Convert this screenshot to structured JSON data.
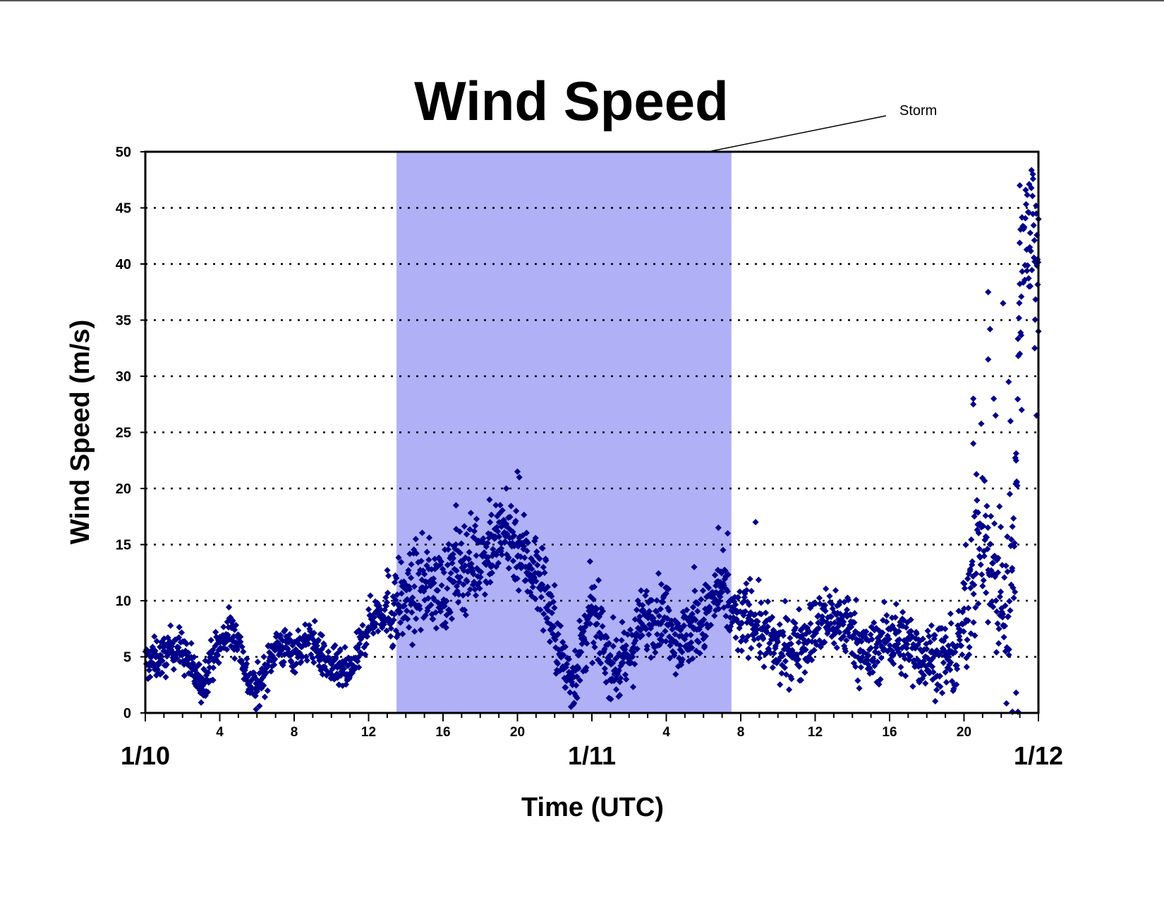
{
  "chart_data": {
    "type": "scatter",
    "title": "Wind Speed",
    "xlabel": "Time (UTC)",
    "ylabel": "Wind Speed (m/s)",
    "ylim": [
      0,
      50
    ],
    "yticks": [
      0,
      5,
      10,
      15,
      20,
      25,
      30,
      35,
      40,
      45,
      50
    ],
    "ytick_labels": [
      "0",
      "5",
      "10",
      "15",
      "20",
      "25",
      "30",
      "35",
      "40",
      "45",
      "50"
    ],
    "xlim_hours": [
      0,
      48
    ],
    "x_unit": "hours after 1/10 00 UTC",
    "xtick_hours": [
      4,
      8,
      12,
      16,
      20,
      28,
      32,
      36,
      40,
      44
    ],
    "xtick_labels": [
      "4",
      "8",
      "12",
      "16",
      "20",
      "4",
      "8",
      "12",
      "16",
      "20"
    ],
    "date_labels": [
      {
        "hour": 0,
        "label": "1/10"
      },
      {
        "hour": 24,
        "label": "1/11"
      },
      {
        "hour": 48,
        "label": "1/12"
      }
    ],
    "grid": "dotted horizontal",
    "legend": "none",
    "shaded_region": {
      "label": "Storm",
      "start_hour": 13.5,
      "end_hour": 31.5
    },
    "series": [
      {
        "color": "#00008b",
        "marker": "diamond",
        "trend": [
          [
            0,
            4.5
          ],
          [
            1,
            5.0
          ],
          [
            1.5,
            6.0
          ],
          [
            2,
            5.5
          ],
          [
            2.5,
            4.0
          ],
          [
            3,
            2.5
          ],
          [
            3.5,
            4.5
          ],
          [
            4,
            6.0
          ],
          [
            4.5,
            7.5
          ],
          [
            5,
            6.5
          ],
          [
            5.5,
            3.0
          ],
          [
            6,
            2.0
          ],
          [
            6.5,
            4.0
          ],
          [
            7,
            6.0
          ],
          [
            8,
            5.5
          ],
          [
            8.5,
            6.0
          ],
          [
            9,
            6.5
          ],
          [
            9.5,
            5.0
          ],
          [
            10,
            4.0
          ],
          [
            11,
            3.5
          ],
          [
            11.5,
            5.5
          ],
          [
            12,
            8.0
          ],
          [
            12.5,
            9.0
          ],
          [
            13,
            9.0
          ],
          [
            14,
            10.0
          ],
          [
            15,
            11.5
          ],
          [
            16,
            11.0
          ],
          [
            17,
            13.0
          ],
          [
            18,
            14.0
          ],
          [
            19,
            15.5
          ],
          [
            19.5,
            16.0
          ],
          [
            20,
            15.0
          ],
          [
            20.5,
            13.5
          ],
          [
            21,
            12.5
          ],
          [
            21.5,
            11.0
          ],
          [
            22,
            7.0
          ],
          [
            22.5,
            4.0
          ],
          [
            23,
            3.0
          ],
          [
            23.5,
            6.0
          ],
          [
            24,
            8.5
          ],
          [
            24.5,
            7.0
          ],
          [
            25,
            4.5
          ],
          [
            25.5,
            4.0
          ],
          [
            26,
            5.0
          ],
          [
            26.5,
            7.5
          ],
          [
            27,
            8.5
          ],
          [
            28,
            9.0
          ],
          [
            28.5,
            7.0
          ],
          [
            29,
            6.5
          ],
          [
            29.5,
            8.0
          ],
          [
            30,
            8.0
          ],
          [
            30.5,
            10.0
          ],
          [
            31,
            11.0
          ],
          [
            31.5,
            9.0
          ],
          [
            32,
            8.0
          ],
          [
            32.5,
            9.0
          ],
          [
            33,
            7.5
          ],
          [
            34,
            5.5
          ],
          [
            35,
            6.0
          ],
          [
            36,
            7.5
          ],
          [
            37,
            8.5
          ],
          [
            38,
            7.5
          ],
          [
            38.5,
            5.5
          ],
          [
            39,
            5.0
          ],
          [
            40,
            7.0
          ],
          [
            41,
            6.0
          ],
          [
            42,
            5.0
          ],
          [
            43,
            5.0
          ],
          [
            43.5,
            4.5
          ],
          [
            44,
            8.0
          ],
          [
            44.5,
            14.0
          ],
          [
            45,
            16.0
          ],
          [
            45.5,
            12.0
          ],
          [
            46,
            11.0
          ],
          [
            46.3,
            8.0
          ],
          [
            46.8,
            20.0
          ],
          [
            47,
            38.0
          ],
          [
            47.3,
            44.0
          ],
          [
            47.7,
            43.0
          ],
          [
            48,
            40.0
          ]
        ],
        "outliers": [
          [
            20,
            21.5
          ],
          [
            20.1,
            21.0
          ],
          [
            19.4,
            20.0
          ],
          [
            18.5,
            19.0
          ],
          [
            16.7,
            18.5
          ],
          [
            23.9,
            13.5
          ],
          [
            29.5,
            13.0
          ],
          [
            30.8,
            16.5
          ],
          [
            31.3,
            16.0
          ],
          [
            32.8,
            17.0
          ],
          [
            44.5,
            28.0
          ],
          [
            44.5,
            27.5
          ],
          [
            44.5,
            24.0
          ],
          [
            45.3,
            37.5
          ],
          [
            45.4,
            34.2
          ],
          [
            45.3,
            31.5
          ],
          [
            45.6,
            28.0
          ],
          [
            45.7,
            26.5
          ],
          [
            46.1,
            36.5
          ],
          [
            46.4,
            29.5
          ],
          [
            46.5,
            26.0
          ],
          [
            46.8,
            22.5
          ],
          [
            47.0,
            32.0
          ],
          [
            47.1,
            27.0
          ],
          [
            47.0,
            47.0
          ],
          [
            47.7,
            48.0
          ],
          [
            48.0,
            34.0
          ],
          [
            47.9,
            26.5
          ],
          [
            47.8,
            32.5
          ],
          [
            46.8,
            1.8
          ],
          [
            46.6,
            0.1
          ],
          [
            46.9,
            0.1
          ],
          [
            48,
            44.0
          ],
          [
            47.5,
            38.0
          ]
        ]
      }
    ]
  }
}
